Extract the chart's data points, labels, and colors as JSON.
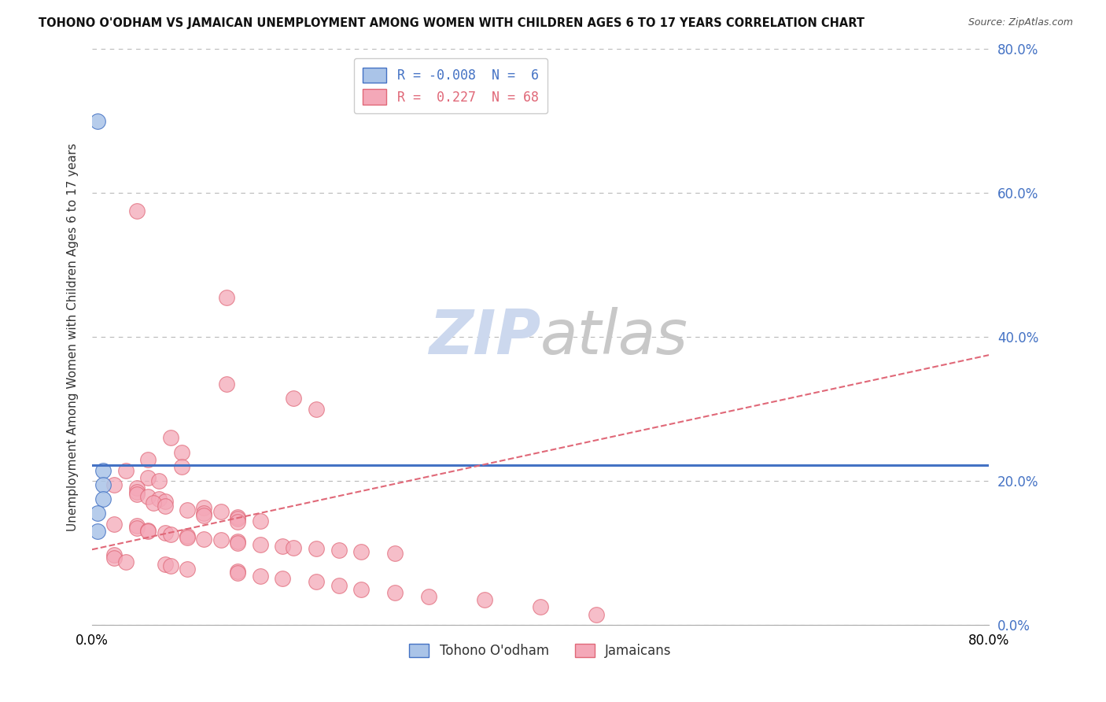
{
  "title": "TOHONO O'ODHAM VS JAMAICAN UNEMPLOYMENT AMONG WOMEN WITH CHILDREN AGES 6 TO 17 YEARS CORRELATION CHART",
  "source": "Source: ZipAtlas.com",
  "ylabel": "Unemployment Among Women with Children Ages 6 to 17 years",
  "legend_labels": [
    "Tohono O'odham",
    "Jamaicans"
  ],
  "R_blue": -0.008,
  "N_blue": 6,
  "R_pink": 0.227,
  "N_pink": 68,
  "blue_color": "#aac4e8",
  "pink_color": "#f4a8b8",
  "blue_line_color": "#4472c4",
  "pink_line_color": "#e06878",
  "grid_color": "#c0c0c0",
  "background_color": "#ffffff",
  "watermark_color": "#ccd8ee",
  "blue_scatter": [
    [
      0.005,
      0.7
    ],
    [
      0.01,
      0.215
    ],
    [
      0.01,
      0.195
    ],
    [
      0.01,
      0.175
    ],
    [
      0.005,
      0.155
    ],
    [
      0.005,
      0.13
    ]
  ],
  "pink_scatter": [
    [
      0.04,
      0.575
    ],
    [
      0.12,
      0.455
    ],
    [
      0.12,
      0.335
    ],
    [
      0.18,
      0.315
    ],
    [
      0.2,
      0.3
    ],
    [
      0.07,
      0.26
    ],
    [
      0.08,
      0.24
    ],
    [
      0.05,
      0.23
    ],
    [
      0.08,
      0.22
    ],
    [
      0.03,
      0.215
    ],
    [
      0.05,
      0.205
    ],
    [
      0.06,
      0.2
    ],
    [
      0.02,
      0.195
    ],
    [
      0.04,
      0.19
    ],
    [
      0.04,
      0.185
    ],
    [
      0.04,
      0.182
    ],
    [
      0.05,
      0.178
    ],
    [
      0.06,
      0.175
    ],
    [
      0.065,
      0.172
    ],
    [
      0.055,
      0.17
    ],
    [
      0.065,
      0.165
    ],
    [
      0.1,
      0.163
    ],
    [
      0.085,
      0.16
    ],
    [
      0.115,
      0.158
    ],
    [
      0.1,
      0.155
    ],
    [
      0.1,
      0.152
    ],
    [
      0.13,
      0.15
    ],
    [
      0.13,
      0.148
    ],
    [
      0.15,
      0.145
    ],
    [
      0.13,
      0.143
    ],
    [
      0.02,
      0.14
    ],
    [
      0.04,
      0.138
    ],
    [
      0.04,
      0.135
    ],
    [
      0.05,
      0.132
    ],
    [
      0.05,
      0.13
    ],
    [
      0.065,
      0.128
    ],
    [
      0.07,
      0.126
    ],
    [
      0.085,
      0.124
    ],
    [
      0.085,
      0.122
    ],
    [
      0.1,
      0.12
    ],
    [
      0.115,
      0.118
    ],
    [
      0.13,
      0.116
    ],
    [
      0.13,
      0.114
    ],
    [
      0.15,
      0.112
    ],
    [
      0.17,
      0.11
    ],
    [
      0.18,
      0.108
    ],
    [
      0.2,
      0.106
    ],
    [
      0.22,
      0.104
    ],
    [
      0.24,
      0.102
    ],
    [
      0.27,
      0.1
    ],
    [
      0.02,
      0.098
    ],
    [
      0.02,
      0.093
    ],
    [
      0.03,
      0.088
    ],
    [
      0.065,
      0.085
    ],
    [
      0.07,
      0.082
    ],
    [
      0.085,
      0.078
    ],
    [
      0.13,
      0.075
    ],
    [
      0.13,
      0.072
    ],
    [
      0.15,
      0.068
    ],
    [
      0.17,
      0.065
    ],
    [
      0.2,
      0.06
    ],
    [
      0.22,
      0.055
    ],
    [
      0.24,
      0.05
    ],
    [
      0.27,
      0.045
    ],
    [
      0.3,
      0.04
    ],
    [
      0.35,
      0.035
    ],
    [
      0.4,
      0.025
    ],
    [
      0.45,
      0.015
    ]
  ],
  "blue_trend_y": 0.222,
  "pink_trend_x0": 0.0,
  "pink_trend_y0": 0.105,
  "pink_trend_x1": 0.8,
  "pink_trend_y1": 0.375,
  "xlim": [
    0.0,
    0.8
  ],
  "ylim": [
    0.0,
    0.8
  ],
  "yticks": [
    0.0,
    0.2,
    0.4,
    0.6,
    0.8
  ],
  "ytick_labels": [
    "0.0%",
    "20.0%",
    "40.0%",
    "60.0%",
    "80.0%"
  ]
}
